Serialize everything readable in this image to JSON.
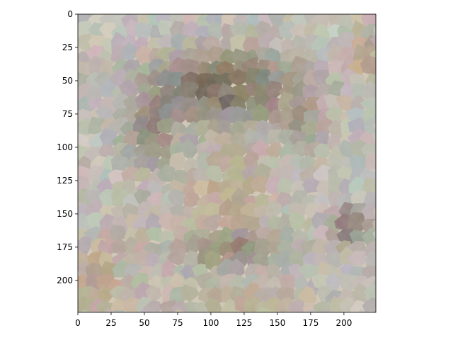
{
  "chart_data": {
    "type": "image",
    "title": "",
    "xlabel": "",
    "ylabel": "",
    "xlim": [
      0,
      224
    ],
    "ylim": [
      224,
      0
    ],
    "xticks": [
      0,
      25,
      50,
      75,
      100,
      125,
      150,
      175,
      200
    ],
    "yticks": [
      0,
      25,
      50,
      75,
      100,
      125,
      150,
      175,
      200
    ],
    "grid": false,
    "image_content": "superpixel-segmented photo of a man's face on a textured cream and brown background"
  },
  "colors": {
    "cream": "#d9d2c4",
    "blue_gray": "#9fa9ae",
    "tan": "#b58f6c",
    "dark_brown": "#5f4d3f",
    "gray_brown": "#7e7469",
    "axis": "#000000"
  }
}
